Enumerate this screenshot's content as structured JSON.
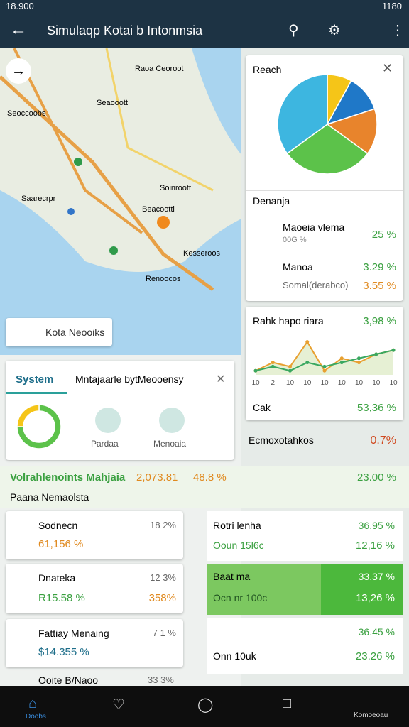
{
  "status_bar": {
    "time_left": "18.900",
    "time_right": "1180"
  },
  "app_bar": {
    "title": "Simulaqp Kotai b Intonmsia"
  },
  "map": {
    "search_chip": "Kota Neooiks",
    "labels": [
      "Raoa Ceoroot",
      "Seaooott",
      "Seoccoobs",
      "Saarecrpr",
      "Soinroott",
      "Beacootti",
      "Kesseroos",
      "Renoocos"
    ]
  },
  "pie_card": {
    "title": "Reach",
    "slices": [
      {
        "color": "#f5c518",
        "value": 8
      },
      {
        "color": "#1f78c8",
        "value": 12
      },
      {
        "color": "#e8842c",
        "value": 15
      },
      {
        "color": "#5cc24a",
        "value": 30
      },
      {
        "color": "#3db6e0",
        "value": 35
      }
    ]
  },
  "breakdown_card": {
    "title": "Denanja",
    "items": [
      {
        "label": "Maoeia vlema",
        "sub": "00G %",
        "value": "25 %"
      },
      {
        "label": "Manoa",
        "value": "3.29 %"
      },
      {
        "label": "Somal(derabco)",
        "value": "3.55 %"
      }
    ]
  },
  "trend_card": {
    "title": "Rahk hapo riara",
    "value": "3,98 %",
    "x_labels": [
      "10",
      "2",
      "10",
      "10",
      "10",
      "10",
      "10",
      "10",
      "10"
    ],
    "ylim": [
      0,
      10
    ],
    "series": [
      {
        "color": "#e8a030",
        "values": [
          1,
          3,
          2,
          8,
          1,
          4,
          3,
          5,
          6
        ]
      },
      {
        "color": "#3aa860",
        "values": [
          1,
          2,
          1,
          3,
          2,
          3,
          4,
          5,
          6
        ]
      }
    ],
    "footer_label": "Cak",
    "footer_value": "53,36 %"
  },
  "system_panel": {
    "tabs": [
      "System",
      "Mntajaarle bytMeooensy"
    ],
    "donut": [
      {
        "color": "#5cc24a",
        "value": 75
      },
      {
        "color": "#f5c518",
        "value": 25
      }
    ],
    "icons": [
      "Pardaa",
      "Menoaia"
    ]
  },
  "summary": {
    "label": "Volrahlenoints Mahjaia",
    "value1": "2,073.81",
    "value2": "48.8 %",
    "value3": "23.00 %",
    "sub": "Paana Nemaolsta",
    "right_label": "Ecmoxotahkos",
    "right_value": "0.7%"
  },
  "left_list": [
    {
      "name": "Sodnecn",
      "amount": "61,156 %",
      "pct": "18 2%"
    },
    {
      "name": "Dnateka",
      "amount": "R15.58 %",
      "pct": "12 3%",
      "pct2": "358%"
    },
    {
      "name": "Fattiay Menaing",
      "amount": "$14.355 %",
      "pct": "7 1 %"
    },
    {
      "name": "Ooite B/Naoo",
      "pct": "33 3%"
    }
  ],
  "right_list": [
    {
      "name": "Rotri lenha",
      "sub": "Ooun 15l6c",
      "value": "36.95 %",
      "value2": "12,16 %"
    },
    {
      "name": "Baat ma",
      "sub": "Ocn nr 100c",
      "value": "33.37 %",
      "value2": "13,26 %"
    },
    {
      "name": "",
      "sub": "Onn 10uk",
      "value": "36.45 %",
      "value2": "23.26 %"
    }
  ],
  "bottom_nav": {
    "home": "Doobs",
    "last": "Komoeoau"
  }
}
